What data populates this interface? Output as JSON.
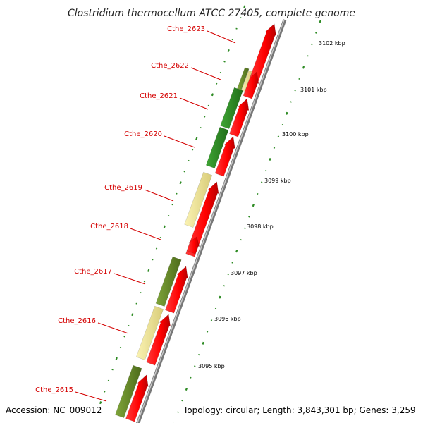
{
  "title": "Clostridium thermocellum ATCC 27405, complete genome",
  "footer": {
    "accession": "Accession: NC_009012",
    "summary": "Topology: circular; Length: 3,843,301 bp; Genes: 3,259"
  },
  "colors": {
    "cds_red": "#ff0000",
    "cds_red_dark": "#c80000",
    "green_dark": "#2e8b24",
    "olive": "#6b8e23",
    "pale_yellow": "#f0e68c",
    "tick_green": "#2e8b24",
    "label_red": "#d40000",
    "backbone": "#9a9a9a"
  },
  "genes": [
    {
      "label": "Cthe_2623"
    },
    {
      "label": "Cthe_2622"
    },
    {
      "label": "Cthe_2621"
    },
    {
      "label": "Cthe_2620"
    },
    {
      "label": "Cthe_2619"
    },
    {
      "label": "Cthe_2618"
    },
    {
      "label": "Cthe_2617"
    },
    {
      "label": "Cthe_2616"
    },
    {
      "label": "Cthe_2615"
    }
  ],
  "scale": [
    {
      "label": "3102 kbp"
    },
    {
      "label": "3101 kbp"
    },
    {
      "label": "3100 kbp"
    },
    {
      "label": "3099 kbp"
    },
    {
      "label": "3098 kbp"
    },
    {
      "label": "3097 kbp"
    },
    {
      "label": "3096 kbp"
    },
    {
      "label": "3095 kbp"
    }
  ]
}
